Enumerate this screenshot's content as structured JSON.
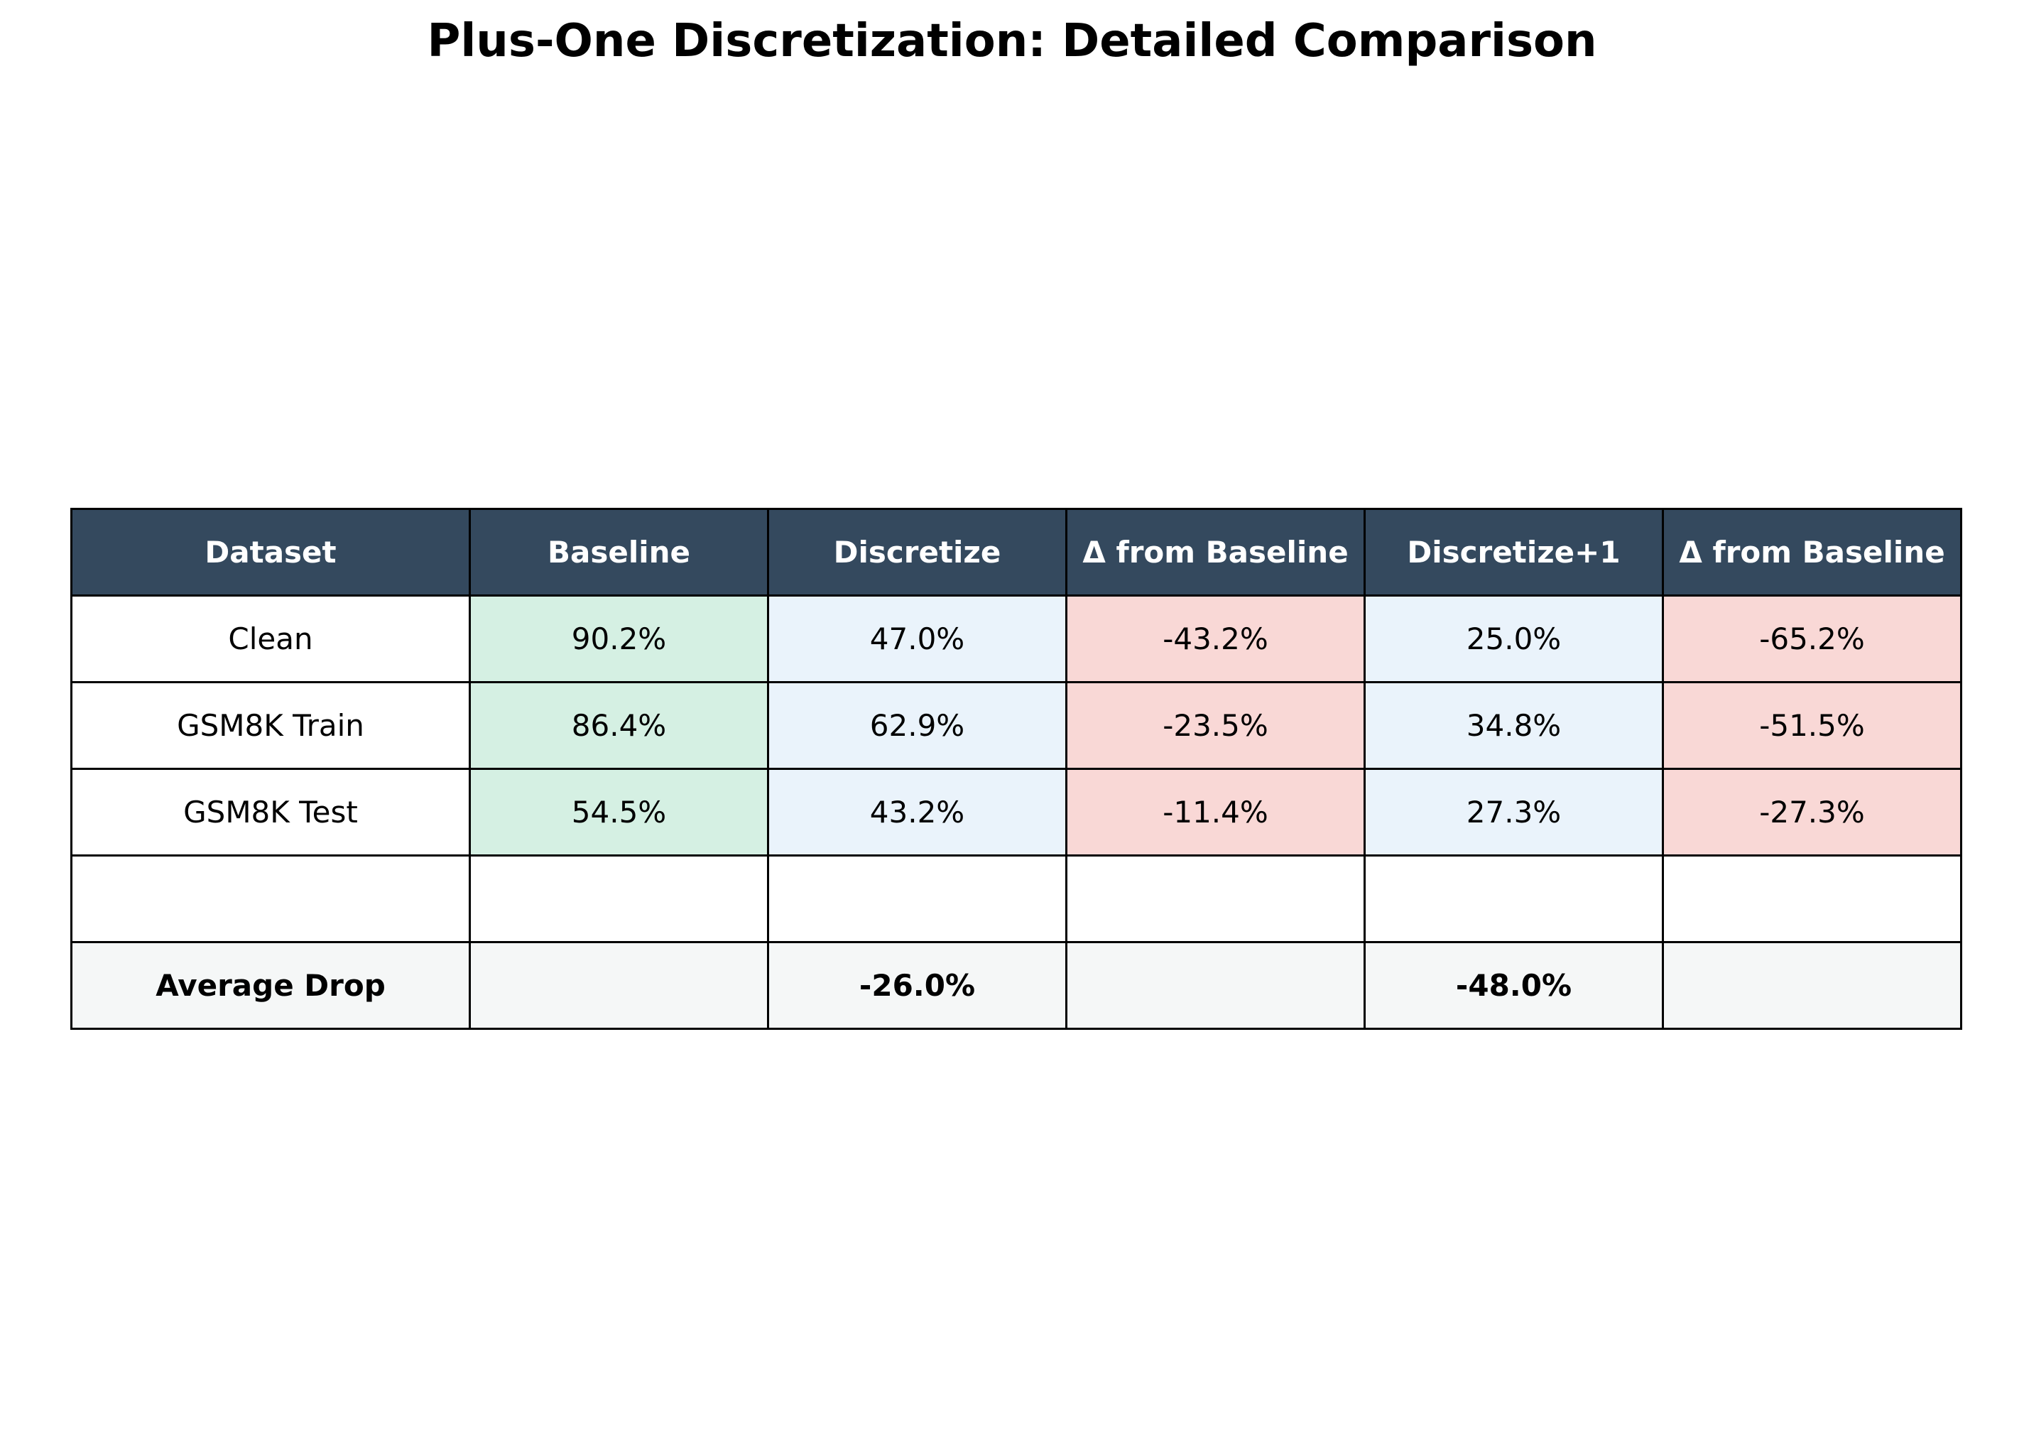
{
  "chart_data": {
    "type": "table",
    "title": "Plus-One Discretization: Detailed Comparison",
    "columns": [
      "Dataset",
      "Baseline",
      "Discretize",
      "Δ from Baseline",
      "Discretize+1",
      "Δ from Baseline"
    ],
    "rows": [
      [
        "Clean",
        "90.2%",
        "47.0%",
        "-43.2%",
        "25.0%",
        "-65.2%"
      ],
      [
        "GSM8K Train",
        "86.4%",
        "62.9%",
        "-23.5%",
        "34.8%",
        "-51.5%"
      ],
      [
        "GSM8K Test",
        "54.5%",
        "43.2%",
        "-11.4%",
        "27.3%",
        "-27.3%"
      ],
      [
        "",
        "",
        "",
        "",
        "",
        ""
      ],
      [
        "Average Drop",
        "",
        "-26.0%",
        "",
        "-48.0%",
        ""
      ]
    ]
  },
  "colors": {
    "header_bg": "#34495e",
    "header_text": "#ffffff",
    "baseline_cell": "#d5f0e3",
    "discretize_cell": "#eaf3fb",
    "delta_cell": "#f9d8d6",
    "summary_row": "#f5f7f7",
    "border": "#000000"
  }
}
